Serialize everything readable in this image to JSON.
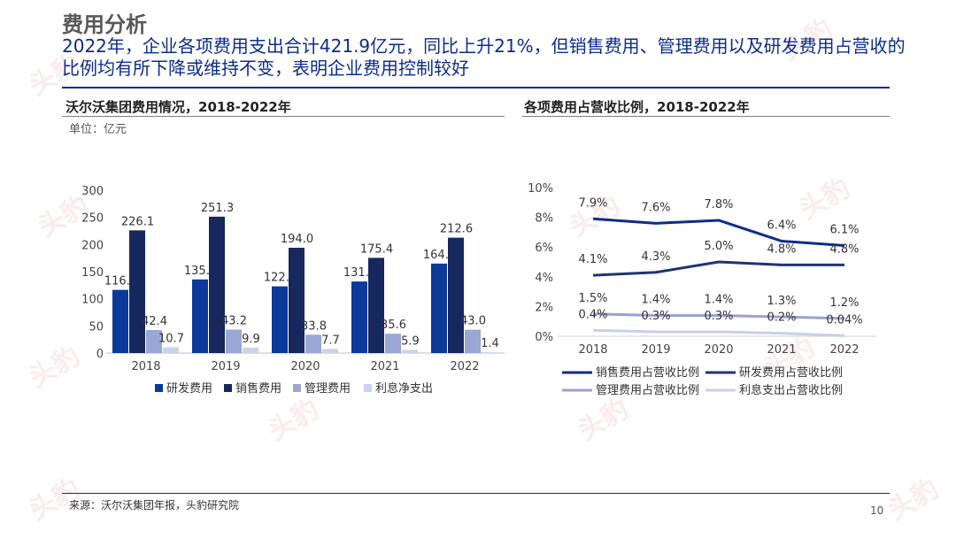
{
  "header": {
    "title": "费用分析",
    "subtitle": "2022年，企业各项费用支出合计421.9亿元，同比上升21%，但销售费用、管理费用以及研发费用占营收的比例均有所下降或维持不变，表明企业费用控制较好"
  },
  "watermark": "头豹",
  "left_panel": {
    "title": "沃尔沃集团费用情况，2018-2022年",
    "unit": "单位：亿元"
  },
  "right_panel": {
    "title": "各项费用占营收比例，2018-2022年"
  },
  "footer": {
    "source": "来源：沃尔沃集团年报，头豹研究院",
    "page_number": "10"
  },
  "chart_data": [
    {
      "type": "bar",
      "categories": [
        "2018",
        "2019",
        "2020",
        "2021",
        "2022"
      ],
      "ylim": [
        0,
        300
      ],
      "yticks": [
        "0",
        "50",
        "100",
        "150",
        "200",
        "250",
        "300"
      ],
      "legend_position": "bottom",
      "series": [
        {
          "name": "研发费用",
          "color": "#0b3a9b",
          "values": [
            116.4,
            135.7,
            122.9,
            131.9,
            164.9
          ],
          "labels": [
            "116.4",
            "135.7",
            "122.9",
            "131.9",
            "164.9"
          ]
        },
        {
          "name": "销售费用",
          "color": "#16285e",
          "values": [
            226.1,
            251.3,
            194.0,
            175.4,
            212.6
          ],
          "labels": [
            "226.1",
            "251.3",
            "194.0",
            "175.4",
            "212.6"
          ]
        },
        {
          "name": "管理费用",
          "color": "#9aa6d4",
          "values": [
            42.4,
            43.2,
            33.8,
            35.6,
            43.0
          ],
          "labels": [
            "42.4",
            "43.2",
            "33.8",
            "35.6",
            "43.0"
          ]
        },
        {
          "name": "利息净支出",
          "color": "#c9d3ec",
          "values": [
            10.7,
            9.9,
            7.7,
            5.9,
            1.4
          ],
          "labels": [
            "10.7",
            "9.9",
            "7.7",
            "5.9",
            "1.4"
          ]
        }
      ]
    },
    {
      "type": "line",
      "categories": [
        "2018",
        "2019",
        "2020",
        "2021",
        "2022"
      ],
      "ylim": [
        0,
        10
      ],
      "yticks": [
        "0%",
        "2%",
        "4%",
        "6%",
        "8%",
        "10%"
      ],
      "legend_position": "bottom",
      "series": [
        {
          "name": "销售费用占营收比例",
          "color": "#0b2c8c",
          "values": [
            7.9,
            7.6,
            7.8,
            6.4,
            6.1
          ],
          "labels": [
            "7.9%",
            "7.6%",
            "7.8%",
            "6.4%",
            "6.1%"
          ]
        },
        {
          "name": "研发费用占营收比例",
          "color": "#1f3470",
          "values": [
            4.1,
            4.3,
            5.0,
            4.8,
            4.8
          ],
          "labels": [
            "4.1%",
            "4.3%",
            "5.0%",
            "4.8%",
            "4.8%"
          ]
        },
        {
          "name": "管理费用占营收比例",
          "color": "#98a3d0",
          "values": [
            1.5,
            1.4,
            1.4,
            1.3,
            1.2
          ],
          "labels": [
            "1.5%",
            "1.4%",
            "1.4%",
            "1.3%",
            "1.2%"
          ]
        },
        {
          "name": "利息支出占营收比例",
          "color": "#c5d0ea",
          "values": [
            0.4,
            0.3,
            0.3,
            0.2,
            0.04
          ],
          "labels": [
            "0.4%",
            "0.3%",
            "0.3%",
            "0.2%",
            "0.04%"
          ]
        }
      ]
    }
  ]
}
